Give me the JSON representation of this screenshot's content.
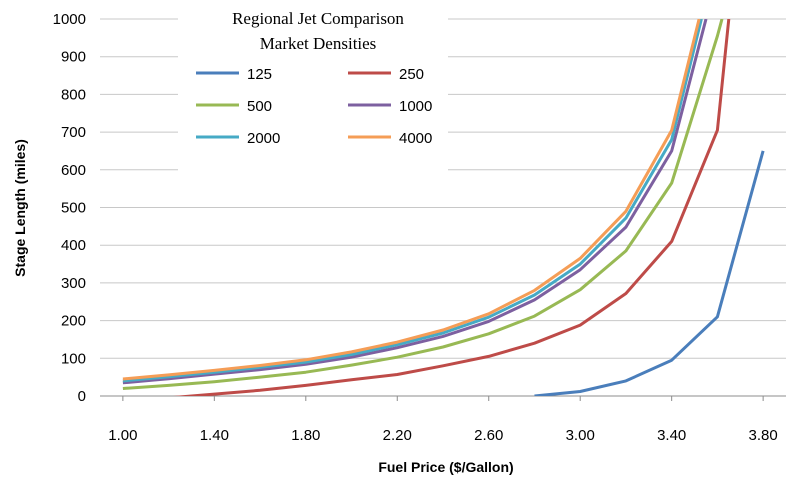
{
  "chart_data": {
    "type": "line",
    "title": "Regional Jet Comparison",
    "subtitle": "Market Densities",
    "xlabel": "Fuel Price ($/Gallon)",
    "ylabel": "Stage Length (miles)",
    "xlim": [
      0.9,
      3.9
    ],
    "ylim": [
      0,
      1000
    ],
    "x_ticks": [
      "1.00",
      "1.40",
      "1.80",
      "2.20",
      "2.60",
      "3.00",
      "3.40",
      "3.80"
    ],
    "y_ticks": [
      "0",
      "100",
      "200",
      "300",
      "400",
      "500",
      "600",
      "700",
      "800",
      "900",
      "1000"
    ],
    "grid": "horizontal",
    "legend_position": "top-left",
    "series": [
      {
        "name": "125",
        "color": "#4a7ebb",
        "points": [
          [
            2.8,
            0
          ],
          [
            3.0,
            12
          ],
          [
            3.2,
            40
          ],
          [
            3.4,
            95
          ],
          [
            3.6,
            210
          ],
          [
            3.8,
            650
          ]
        ]
      },
      {
        "name": "250",
        "color": "#be4b48",
        "points": [
          [
            1.0,
            -20
          ],
          [
            1.2,
            -5
          ],
          [
            1.4,
            5
          ],
          [
            1.6,
            15
          ],
          [
            1.8,
            28
          ],
          [
            2.0,
            43
          ],
          [
            2.2,
            57
          ],
          [
            2.4,
            80
          ],
          [
            2.6,
            105
          ],
          [
            2.8,
            140
          ],
          [
            3.0,
            188
          ],
          [
            3.2,
            272
          ],
          [
            3.4,
            410
          ],
          [
            3.6,
            705
          ],
          [
            3.65,
            1000
          ]
        ]
      },
      {
        "name": "500",
        "color": "#98b954",
        "points": [
          [
            1.0,
            20
          ],
          [
            1.2,
            28
          ],
          [
            1.4,
            38
          ],
          [
            1.6,
            50
          ],
          [
            1.8,
            63
          ],
          [
            2.0,
            82
          ],
          [
            2.2,
            103
          ],
          [
            2.4,
            130
          ],
          [
            2.6,
            165
          ],
          [
            2.8,
            212
          ],
          [
            3.0,
            282
          ],
          [
            3.2,
            385
          ],
          [
            3.4,
            565
          ],
          [
            3.6,
            955
          ],
          [
            3.62,
            1000
          ]
        ]
      },
      {
        "name": "1000",
        "color": "#7d60a0",
        "points": [
          [
            1.0,
            35
          ],
          [
            1.2,
            46
          ],
          [
            1.4,
            58
          ],
          [
            1.6,
            70
          ],
          [
            1.8,
            84
          ],
          [
            2.0,
            103
          ],
          [
            2.2,
            128
          ],
          [
            2.4,
            158
          ],
          [
            2.6,
            198
          ],
          [
            2.8,
            255
          ],
          [
            3.0,
            335
          ],
          [
            3.2,
            448
          ],
          [
            3.4,
            650
          ],
          [
            3.55,
            1000
          ]
        ]
      },
      {
        "name": "2000",
        "color": "#46aac5",
        "points": [
          [
            1.0,
            40
          ],
          [
            1.2,
            51
          ],
          [
            1.4,
            63
          ],
          [
            1.6,
            76
          ],
          [
            1.8,
            90
          ],
          [
            2.0,
            110
          ],
          [
            2.2,
            136
          ],
          [
            2.4,
            167
          ],
          [
            2.6,
            209
          ],
          [
            2.8,
            268
          ],
          [
            3.0,
            350
          ],
          [
            3.2,
            472
          ],
          [
            3.4,
            680
          ],
          [
            3.53,
            1000
          ]
        ]
      },
      {
        "name": "4000",
        "color": "#f59d56",
        "points": [
          [
            1.0,
            45
          ],
          [
            1.2,
            56
          ],
          [
            1.4,
            68
          ],
          [
            1.6,
            81
          ],
          [
            1.8,
            96
          ],
          [
            2.0,
            117
          ],
          [
            2.2,
            143
          ],
          [
            2.4,
            175
          ],
          [
            2.6,
            218
          ],
          [
            2.8,
            280
          ],
          [
            3.0,
            365
          ],
          [
            3.2,
            490
          ],
          [
            3.4,
            705
          ],
          [
            3.52,
            1000
          ]
        ]
      }
    ]
  }
}
